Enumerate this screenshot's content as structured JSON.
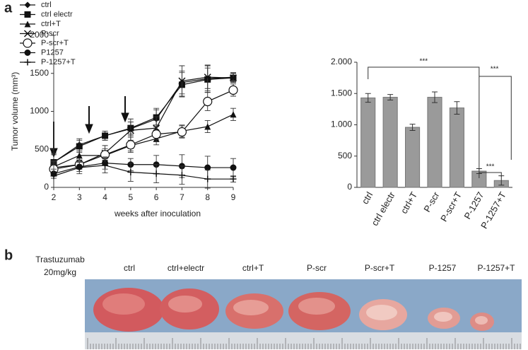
{
  "panels": [
    "a",
    "b"
  ],
  "chart_data": [
    {
      "type": "line",
      "ylabel": "Tumor volume (mm³)",
      "xlabel": "weeks after inoculation",
      "x": [
        2,
        3,
        4,
        5,
        6,
        7,
        8,
        9
      ],
      "xlim": [
        2,
        9
      ],
      "xticks": [
        2,
        3,
        4,
        5,
        6,
        7,
        8,
        9
      ],
      "ylim": [
        0,
        2000
      ],
      "yticks": [
        0,
        500,
        1000,
        1500,
        2000
      ],
      "legend": "upper left",
      "series": [
        {
          "name": "ctrl",
          "marker": "diamond",
          "color": "#111",
          "values": [
            330,
            560,
            680,
            770,
            900,
            1380,
            1430,
            1450
          ],
          "errors": [
            120,
            80,
            60,
            90,
            140,
            150,
            180,
            60
          ]
        },
        {
          "name": "ctrl electr",
          "marker": "square",
          "color": "#111",
          "values": [
            330,
            540,
            680,
            780,
            920,
            1350,
            1420,
            1440
          ],
          "errors": [
            100,
            80,
            60,
            80,
            100,
            160,
            150,
            60
          ]
        },
        {
          "name": "ctrl+T",
          "marker": "triangle",
          "color": "#111",
          "values": [
            270,
            420,
            420,
            550,
            640,
            740,
            800,
            960
          ],
          "errors": [
            80,
            60,
            60,
            70,
            80,
            80,
            80,
            80
          ]
        },
        {
          "name": "P-scr",
          "marker": "x",
          "color": "#111",
          "values": [
            260,
            300,
            450,
            750,
            780,
            1400,
            1450,
            1440
          ],
          "errors": [
            80,
            60,
            100,
            150,
            150,
            200,
            150,
            60
          ]
        },
        {
          "name": "P-scr+T",
          "marker": "circle-open",
          "color": "#111",
          "values": [
            240,
            300,
            430,
            560,
            700,
            730,
            1130,
            1280
          ],
          "errors": [
            80,
            60,
            80,
            100,
            100,
            80,
            120,
            80
          ]
        },
        {
          "name": "P1257",
          "marker": "circle",
          "color": "#111",
          "values": [
            180,
            270,
            320,
            300,
            300,
            280,
            260,
            260
          ],
          "errors": [
            60,
            60,
            80,
            80,
            120,
            150,
            150,
            120
          ]
        },
        {
          "name": "P-1257+T",
          "marker": "plus",
          "color": "#111",
          "values": [
            150,
            260,
            290,
            200,
            180,
            160,
            110,
            110
          ],
          "errors": [
            150,
            80,
            100,
            120,
            120,
            120,
            120,
            40
          ]
        }
      ]
    },
    {
      "type": "bar",
      "categories": [
        "ctrl",
        "ctrl electr",
        "ctrl+T",
        "P-scr",
        "P-scr+T",
        "P-1257",
        "P-1257+T"
      ],
      "values": [
        1430,
        1440,
        960,
        1440,
        1270,
        260,
        110
      ],
      "errors": [
        70,
        45,
        50,
        85,
        100,
        40,
        75
      ],
      "color": "#9a9a9a",
      "ylim": [
        0,
        2000
      ],
      "yticks": [
        0,
        500,
        {
          "value": 1000,
          "label": "1.000"
        },
        {
          "value": 1500,
          "label": "1.500"
        },
        {
          "value": 2000,
          "label": "2.000"
        }
      ],
      "annotations": [
        "***",
        "***",
        "***"
      ]
    }
  ],
  "photo": {
    "treatment": "Trastuzumab",
    "dose": "20mg/kg",
    "labels": [
      "ctrl",
      "ctrl+electr",
      "ctrl+T",
      "P-scr",
      "P-scr+T",
      "P-1257",
      "P-1257+T"
    ]
  }
}
